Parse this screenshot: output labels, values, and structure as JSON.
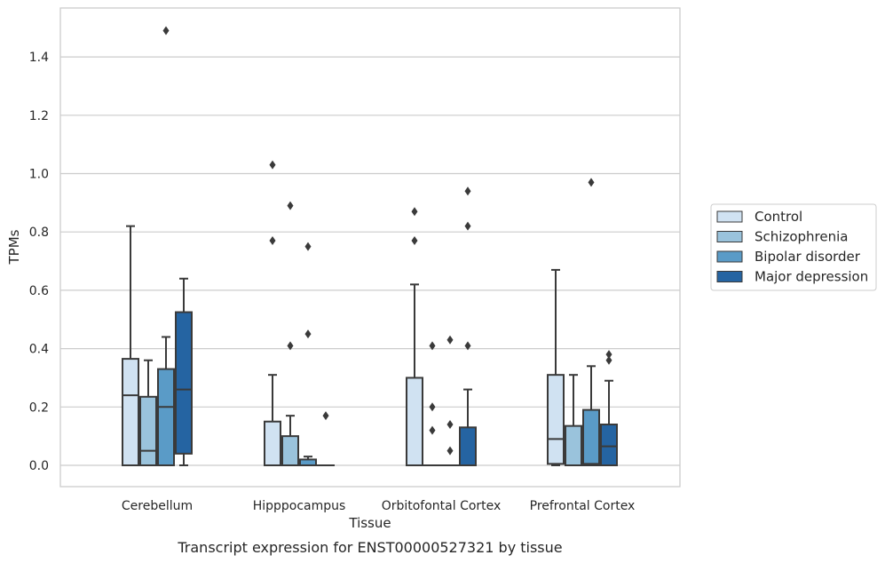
{
  "caption": "Transcript expression for ENST00000527321 by tissue",
  "chart_data": {
    "type": "box",
    "xlabel": "Tissue",
    "ylabel": "TPMs",
    "ylim": [
      -0.07,
      1.56
    ],
    "yticks": [
      "0.0",
      "0.2",
      "0.4",
      "0.6",
      "0.8",
      "1.0",
      "1.2",
      "1.4"
    ],
    "grid": "horizontal",
    "legend_position": "right",
    "categories": [
      "Cerebellum",
      "Hipppocampus",
      "Orbitofontal Cortex",
      "Prefrontal Cortex"
    ],
    "series": [
      {
        "name": "Control",
        "color": "#d0e2f2",
        "boxes": [
          {
            "min": 0.0,
            "q1": 0.0,
            "median": 0.24,
            "q3": 0.365,
            "max": 0.82,
            "outliers": []
          },
          {
            "min": 0.0,
            "q1": 0.0,
            "median": 0.0,
            "q3": 0.15,
            "max": 0.31,
            "outliers": [
              0.77,
              1.03
            ]
          },
          {
            "min": 0.0,
            "q1": 0.0,
            "median": 0.0,
            "q3": 0.3,
            "max": 0.62,
            "outliers": [
              0.77,
              0.87
            ]
          },
          {
            "min": 0.0,
            "q1": 0.005,
            "median": 0.09,
            "q3": 0.31,
            "max": 0.67,
            "outliers": []
          }
        ]
      },
      {
        "name": "Schizophrenia",
        "color": "#9ac3dc",
        "boxes": [
          {
            "min": 0.0,
            "q1": 0.0,
            "median": 0.05,
            "q3": 0.235,
            "max": 0.36,
            "outliers": []
          },
          {
            "min": 0.0,
            "q1": 0.0,
            "median": 0.0,
            "q3": 0.1,
            "max": 0.17,
            "outliers": [
              0.41,
              0.89
            ]
          },
          {
            "min": 0.0,
            "q1": 0.0,
            "median": 0.0,
            "q3": 0.0,
            "max": 0.0,
            "outliers": [
              0.12,
              0.2,
              0.41
            ]
          },
          {
            "min": 0.0,
            "q1": 0.0,
            "median": 0.0,
            "q3": 0.135,
            "max": 0.31,
            "outliers": []
          }
        ]
      },
      {
        "name": "Bipolar disorder",
        "color": "#5a9bc7",
        "boxes": [
          {
            "min": 0.0,
            "q1": 0.0,
            "median": 0.2,
            "q3": 0.33,
            "max": 0.44,
            "outliers": [
              1.49
            ]
          },
          {
            "min": 0.0,
            "q1": 0.0,
            "median": 0.0,
            "q3": 0.02,
            "max": 0.03,
            "outliers": [
              0.45,
              0.75
            ]
          },
          {
            "min": 0.0,
            "q1": 0.0,
            "median": 0.0,
            "q3": 0.0,
            "max": 0.0,
            "outliers": [
              0.05,
              0.14,
              0.43
            ]
          },
          {
            "min": 0.0,
            "q1": 0.0,
            "median": 0.005,
            "q3": 0.19,
            "max": 0.34,
            "outliers": [
              0.97
            ]
          }
        ]
      },
      {
        "name": "Major depression",
        "color": "#2564a2",
        "boxes": [
          {
            "min": 0.0,
            "q1": 0.04,
            "median": 0.26,
            "q3": 0.525,
            "max": 0.64,
            "outliers": []
          },
          {
            "min": 0.0,
            "q1": 0.0,
            "median": 0.0,
            "q3": 0.0,
            "max": 0.0,
            "outliers": [
              0.17
            ]
          },
          {
            "min": 0.0,
            "q1": 0.0,
            "median": 0.0,
            "q3": 0.13,
            "max": 0.26,
            "outliers": [
              0.41,
              0.82,
              0.94
            ]
          },
          {
            "min": 0.0,
            "q1": 0.0,
            "median": 0.065,
            "q3": 0.14,
            "max": 0.29,
            "outliers": [
              0.36,
              0.38
            ]
          }
        ]
      }
    ]
  }
}
